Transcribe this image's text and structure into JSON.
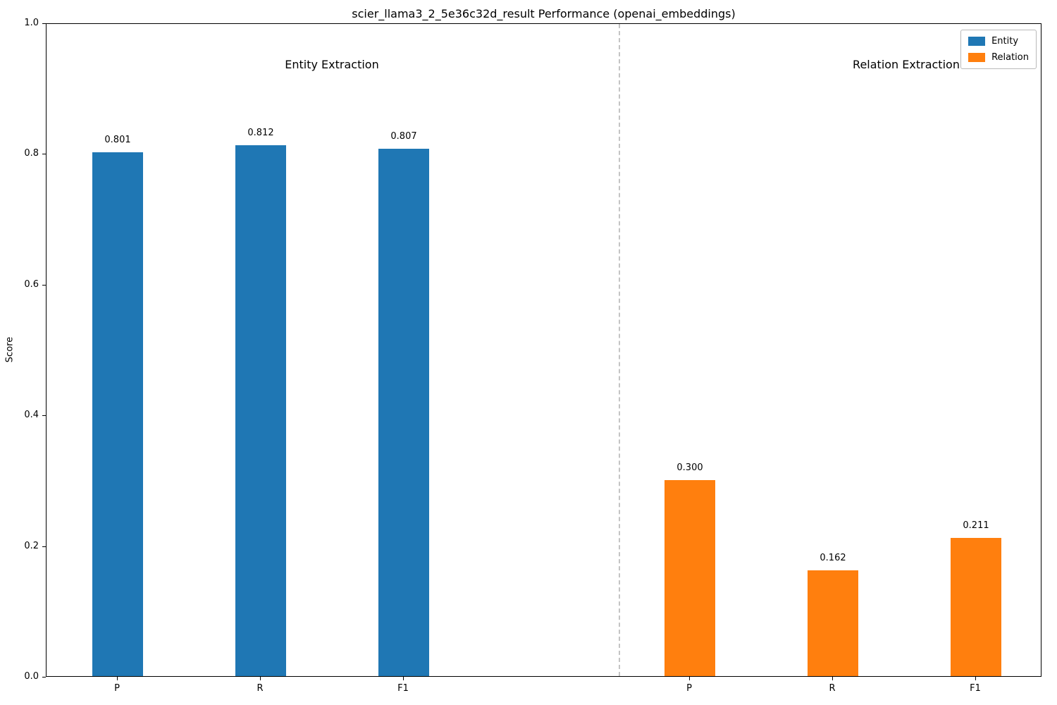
{
  "title": "scier_llama3_2_5e36c32d_result Performance (openai_embeddings)",
  "axes": {
    "ylabel": "Score",
    "y_ticks": [
      "0.0",
      "0.2",
      "0.4",
      "0.6",
      "0.8",
      "1.0"
    ]
  },
  "legend": [
    {
      "label": "Entity",
      "color": "#1f77b4"
    },
    {
      "label": "Relation",
      "color": "#ff7f0e"
    }
  ],
  "chart_data": {
    "type": "bar",
    "title": "scier_llama3_2_5e36c32d_result Performance (openai_embeddings)",
    "xlabel": "",
    "ylabel": "Score",
    "ylim": [
      0,
      1.0
    ],
    "grid": false,
    "legend_position": "upper right",
    "groups": [
      {
        "key": "entity",
        "name": "Entity Extraction",
        "color": "#1f77b4",
        "categories": [
          "P",
          "R",
          "F1"
        ],
        "values": [
          0.801,
          0.812,
          0.807
        ],
        "value_labels": [
          "0.801",
          "0.812",
          "0.807"
        ]
      },
      {
        "key": "relation",
        "name": "Relation Extraction",
        "color": "#ff7f0e",
        "categories": [
          "P",
          "R",
          "F1"
        ],
        "values": [
          0.3,
          0.162,
          0.211
        ],
        "value_labels": [
          "0.300",
          "0.162",
          "0.211"
        ]
      }
    ],
    "separator": "dashed vertical line between entity and relation groups"
  }
}
